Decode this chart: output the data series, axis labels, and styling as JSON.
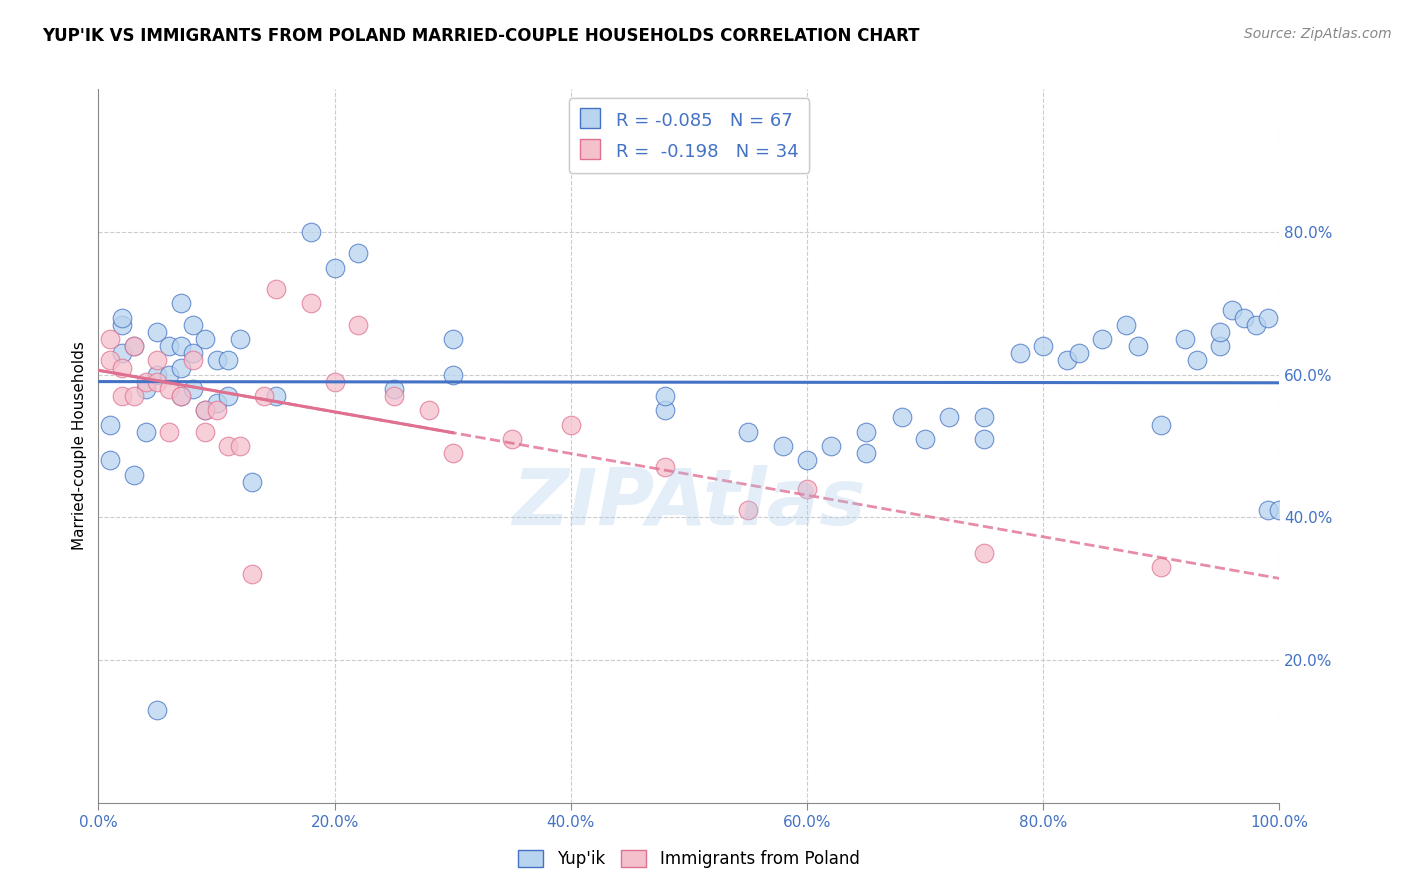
{
  "title": "YUP'IK VS IMMIGRANTS FROM POLAND MARRIED-COUPLE HOUSEHOLDS CORRELATION CHART",
  "source": "Source: ZipAtlas.com",
  "ylabel": "Married-couple Households",
  "xlabel": "",
  "watermark": "ZIPAtlas",
  "blue_R": -0.085,
  "blue_N": 67,
  "pink_R": -0.198,
  "pink_N": 34,
  "blue_color": "#b8d4ee",
  "pink_color": "#f4c0cc",
  "blue_line_color": "#4472c4",
  "pink_line_color": "#e07090",
  "legend_label_blue": "Yup'ik",
  "legend_label_pink": "Immigrants from Poland",
  "xlim": [
    0,
    100
  ],
  "ylim": [
    0,
    100
  ],
  "xticks": [
    0,
    20,
    40,
    60,
    80,
    100
  ],
  "yticks": [
    20,
    40,
    60,
    80
  ],
  "xticklabels": [
    "0.0%",
    "20.0%",
    "40.0%",
    "60.0%",
    "80.0%",
    "100.0%"
  ],
  "yticklabels": [
    "20.0%",
    "40.0%",
    "60.0%",
    "80.0%"
  ],
  "blue_x": [
    1,
    1,
    2,
    2,
    2,
    3,
    3,
    4,
    4,
    5,
    5,
    5,
    6,
    6,
    7,
    7,
    7,
    7,
    8,
    8,
    8,
    9,
    9,
    10,
    10,
    11,
    11,
    12,
    13,
    15,
    18,
    20,
    22,
    25,
    30,
    30,
    48,
    48,
    55,
    58,
    60,
    62,
    65,
    65,
    68,
    70,
    72,
    75,
    75,
    78,
    80,
    82,
    83,
    85,
    87,
    88,
    90,
    92,
    93,
    95,
    95,
    96,
    97,
    98,
    99,
    99,
    100
  ],
  "blue_y": [
    48,
    53,
    63,
    67,
    68,
    46,
    64,
    52,
    58,
    13,
    60,
    66,
    60,
    64,
    57,
    61,
    64,
    70,
    58,
    63,
    67,
    55,
    65,
    56,
    62,
    57,
    62,
    65,
    45,
    57,
    80,
    75,
    77,
    58,
    60,
    65,
    55,
    57,
    52,
    50,
    48,
    50,
    49,
    52,
    54,
    51,
    54,
    51,
    54,
    63,
    64,
    62,
    63,
    65,
    67,
    64,
    53,
    65,
    62,
    64,
    66,
    69,
    68,
    67,
    68,
    41,
    41
  ],
  "pink_x": [
    1,
    1,
    2,
    2,
    3,
    3,
    4,
    5,
    5,
    6,
    6,
    7,
    8,
    9,
    9,
    10,
    11,
    12,
    13,
    14,
    15,
    18,
    20,
    22,
    25,
    28,
    30,
    35,
    40,
    48,
    55,
    60,
    75,
    90
  ],
  "pink_y": [
    62,
    65,
    57,
    61,
    57,
    64,
    59,
    59,
    62,
    52,
    58,
    57,
    62,
    52,
    55,
    55,
    50,
    50,
    32,
    57,
    72,
    70,
    59,
    67,
    57,
    55,
    49,
    51,
    53,
    47,
    41,
    44,
    35,
    33
  ],
  "figsize": [
    14.06,
    8.92
  ],
  "dpi": 100
}
